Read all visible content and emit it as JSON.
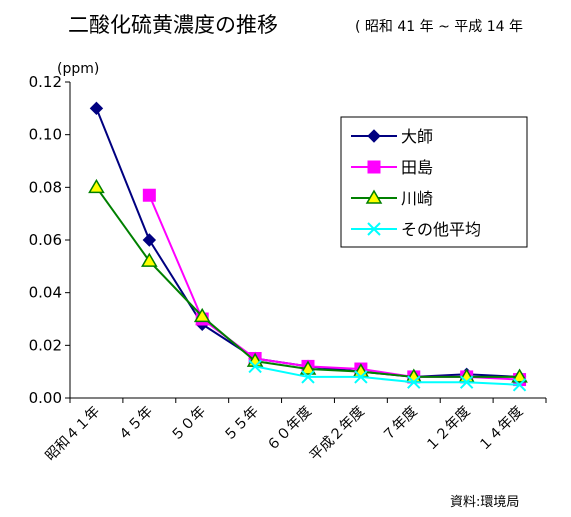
{
  "chart_data": {
    "type": "line",
    "title": "二酸化硫黄濃度の推移",
    "subtitle": "( 昭和 41 年 ~ 平成 14 年",
    "ylabel": "(ppm)",
    "xlabel": "",
    "ylim": [
      0,
      0.12
    ],
    "yticks": [
      "0.00",
      "0.02",
      "0.04",
      "0.06",
      "0.08",
      "0.10",
      "0.12"
    ],
    "categories": [
      "昭和４１年",
      "４５年",
      "５０年",
      "５５年",
      "６０年度",
      "平成２年度",
      "７年度",
      "１２年度",
      "１４年度"
    ],
    "grid": false,
    "legend_position": "top-right",
    "series": [
      {
        "name": "大師",
        "color": "#000080",
        "marker": "diamond",
        "values": [
          0.11,
          0.06,
          0.028,
          0.015,
          0.012,
          0.01,
          0.008,
          0.009,
          0.008
        ]
      },
      {
        "name": "田島",
        "color": "#ff00ff",
        "marker": "square",
        "values": [
          null,
          0.077,
          0.03,
          0.015,
          0.012,
          0.011,
          0.008,
          0.008,
          0.007
        ]
      },
      {
        "name": "川崎",
        "color": "#008000",
        "marker": "triangle",
        "values": [
          0.08,
          0.052,
          0.031,
          0.014,
          0.011,
          0.01,
          0.008,
          0.008,
          0.008
        ]
      },
      {
        "name": "その他平均",
        "color": "#00ffff",
        "marker": "x",
        "values": [
          null,
          null,
          null,
          0.012,
          0.008,
          0.008,
          0.006,
          0.006,
          0.005
        ]
      }
    ],
    "source": "資料:環境局"
  }
}
